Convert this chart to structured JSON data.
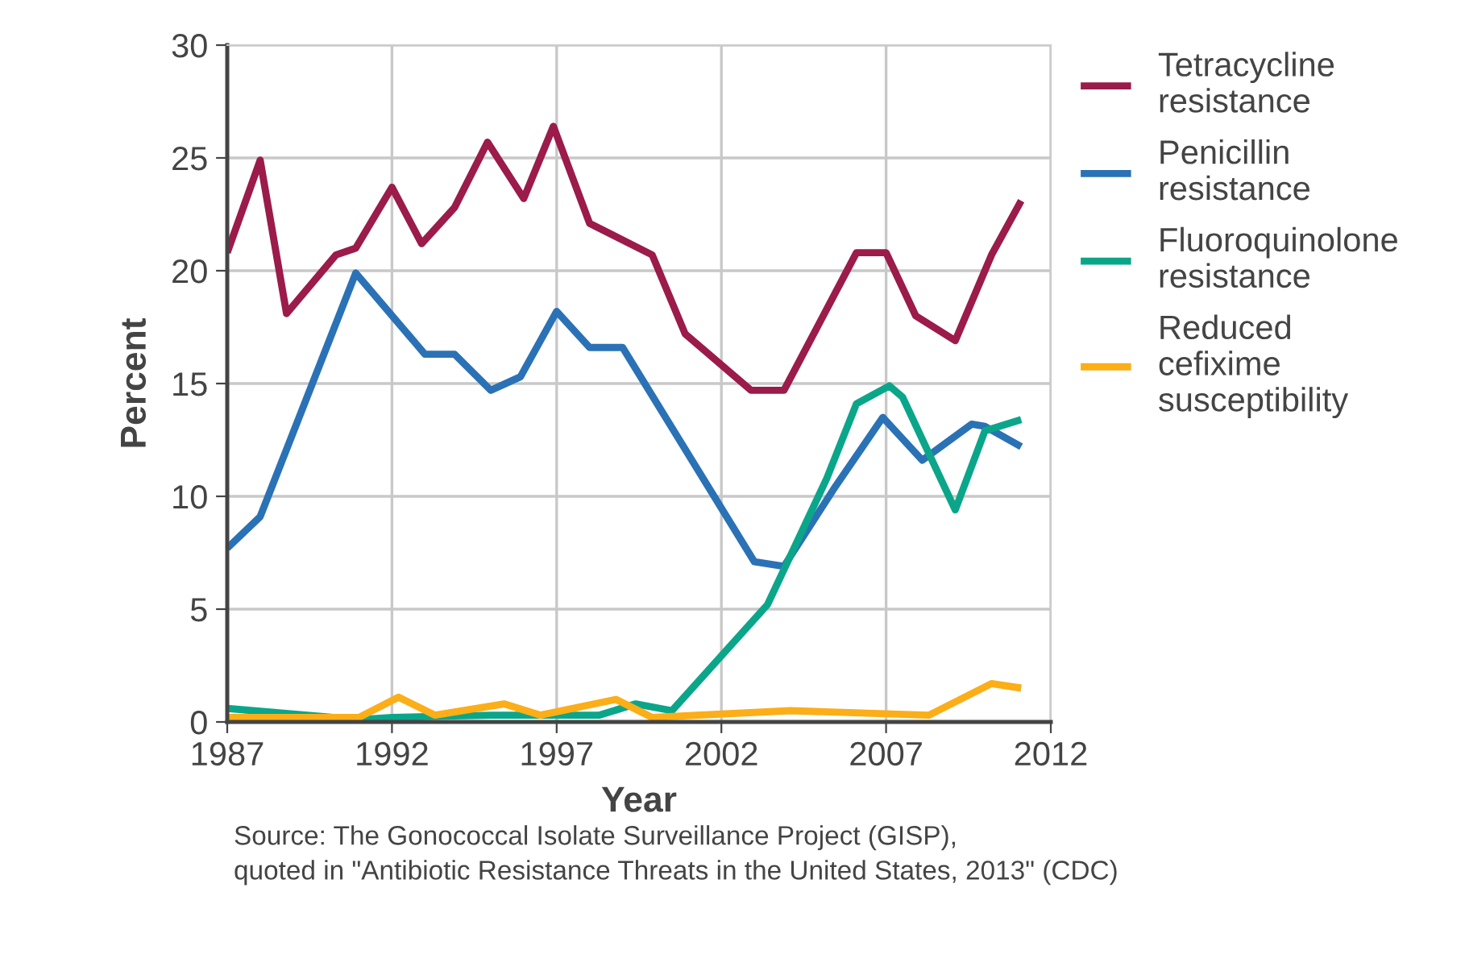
{
  "chart_data": {
    "type": "line",
    "xlabel": "Year",
    "ylabel": "Percent",
    "xlim": [
      1987,
      2012
    ],
    "xticks": [
      1987,
      1992,
      1997,
      2002,
      2007,
      2012
    ],
    "ylim": [
      0,
      30
    ],
    "yticks": [
      0,
      5,
      10,
      15,
      20,
      25,
      30
    ],
    "grid": true,
    "legend": "right",
    "marker": "none",
    "line_style": "solid",
    "annotations": [
      "Source: The Gonococcal Isolate Surveillance Project (GISP),\nquoted in \"Antibiotic Resistance Threats in the United States, 2013\" (CDC)"
    ],
    "series": [
      {
        "name": "Tetracycline\nresistance",
        "color": "#9b1b4a",
        "x": [
          1987,
          1988,
          1988.8,
          1990.3,
          1990.9,
          1992,
          1992.9,
          1993.9,
          1994.9,
          1996.0,
          1996.9,
          1998.0,
          1999.9,
          2000.9,
          2002.9,
          2003.9,
          2006.1,
          2007.0,
          2007.9,
          2009.1,
          2010.2,
          2011.1
        ],
        "values": [
          20.8,
          24.9,
          18.1,
          20.7,
          21.0,
          23.7,
          21.2,
          22.8,
          25.7,
          23.2,
          26.4,
          22.1,
          20.7,
          17.2,
          14.7,
          14.7,
          20.8,
          20.8,
          18.0,
          16.9,
          20.7,
          23.1
        ]
      },
      {
        "name": "Penicillin\nresistance",
        "color": "#2a72b5",
        "x": [
          1987,
          1988,
          1990.9,
          1993.0,
          1993.9,
          1995.0,
          1995.9,
          1997.0,
          1998.0,
          1999.0,
          2003.0,
          2003.9,
          2005.4,
          2006.9,
          2008.1,
          2009.6,
          2010.0,
          2011.1
        ],
        "values": [
          7.7,
          9.1,
          19.9,
          16.3,
          16.3,
          14.7,
          15.3,
          18.2,
          16.6,
          16.6,
          7.1,
          6.9,
          10.3,
          13.5,
          11.6,
          13.2,
          13.1,
          12.2
        ]
      },
      {
        "name": "Fluoroquinolone\nresistance",
        "color": "#0ba68a",
        "x": [
          1987,
          1991,
          1992,
          1995,
          1998.3,
          1999.4,
          2000.5,
          2003.4,
          2005.2,
          2006.1,
          2007.1,
          2007.5,
          2009.1,
          2010.0,
          2011.1
        ],
        "values": [
          0.6,
          0.1,
          0.2,
          0.3,
          0.3,
          0.8,
          0.5,
          5.2,
          10.8,
          14.1,
          14.9,
          14.4,
          9.4,
          12.9,
          13.4
        ]
      },
      {
        "name": "Reduced\ncefixime\nsusceptibility",
        "color": "#fbae17",
        "x": [
          1987,
          1991,
          1992.2,
          1993.3,
          1995.4,
          1996.5,
          1998.8,
          1999.9,
          2004.1,
          2008.3,
          2010.2,
          2011.1
        ],
        "values": [
          0.2,
          0.2,
          1.1,
          0.3,
          0.8,
          0.3,
          1.0,
          0.2,
          0.5,
          0.3,
          1.7,
          1.5
        ]
      }
    ]
  }
}
